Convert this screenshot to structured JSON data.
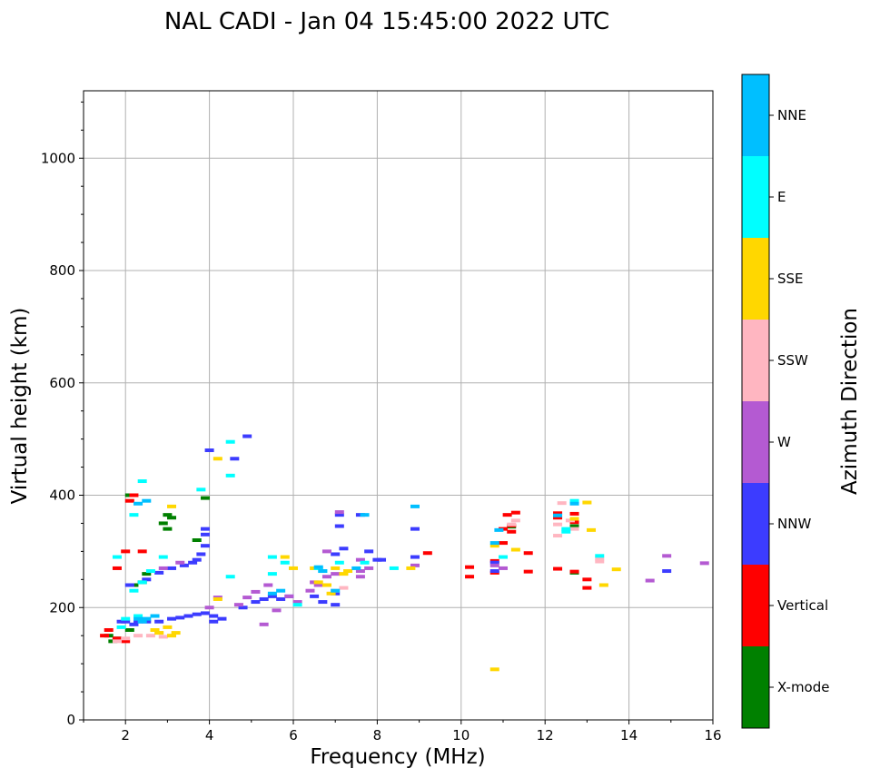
{
  "chart_data": {
    "type": "scatter",
    "title": "NAL CADI - Jan 04 15:45:00 2022 UTC",
    "xlabel": "Frequency (MHz)",
    "ylabel": "Virtual height (km)",
    "xlim": [
      1,
      16
    ],
    "ylim": [
      0,
      1120
    ],
    "xticks": [
      2,
      4,
      6,
      8,
      10,
      12,
      14,
      16
    ],
    "yticks": [
      0,
      200,
      400,
      600,
      800,
      1000
    ],
    "grid": true,
    "colorbar": {
      "label": "Azimuth Direction",
      "categories": [
        "X-mode",
        "Vertical",
        "NNW",
        "W",
        "SSW",
        "SSE",
        "E",
        "NNE"
      ],
      "colors": [
        "#008000",
        "#ff0000",
        "#3c3cff",
        "#b45ad2",
        "#ffb6c1",
        "#ffd700",
        "#00ffff",
        "#00bfff"
      ]
    },
    "series": [
      {
        "name": "X-mode",
        "points": [
          [
            1.6,
            150
          ],
          [
            1.7,
            140
          ],
          [
            1.8,
            145
          ],
          [
            2.1,
            160
          ],
          [
            2.2,
            240
          ],
          [
            2.4,
            245
          ],
          [
            2.5,
            260
          ],
          [
            3.0,
            340
          ],
          [
            2.9,
            350
          ],
          [
            3.1,
            360
          ],
          [
            3.0,
            365
          ],
          [
            3.9,
            395
          ],
          [
            3.7,
            320
          ],
          [
            2.1,
            400
          ],
          [
            12.7,
            262
          ],
          [
            11.2,
            344
          ],
          [
            12.7,
            345
          ]
        ]
      },
      {
        "name": "Vertical",
        "points": [
          [
            1.5,
            150
          ],
          [
            1.6,
            160
          ],
          [
            1.8,
            145
          ],
          [
            2.0,
            140
          ],
          [
            1.8,
            270
          ],
          [
            2.0,
            300
          ],
          [
            2.1,
            390
          ],
          [
            2.2,
            400
          ],
          [
            2.4,
            300
          ],
          [
            11.0,
            340
          ],
          [
            11.1,
            365
          ],
          [
            11.3,
            369
          ],
          [
            11.2,
            346
          ],
          [
            11.2,
            335
          ],
          [
            11.0,
            315
          ],
          [
            11.6,
            297
          ],
          [
            9.2,
            297
          ],
          [
            10.2,
            272
          ],
          [
            10.2,
            255
          ],
          [
            10.8,
            262
          ],
          [
            10.8,
            283
          ],
          [
            11.6,
            264
          ],
          [
            12.3,
            368
          ],
          [
            12.3,
            360
          ],
          [
            12.7,
            367
          ],
          [
            12.7,
            352
          ],
          [
            12.3,
            269
          ],
          [
            12.7,
            264
          ],
          [
            13.0,
            250
          ],
          [
            13.0,
            235
          ]
        ]
      },
      {
        "name": "NNW",
        "points": [
          [
            2.0,
            175
          ],
          [
            2.3,
            175
          ],
          [
            2.5,
            175
          ],
          [
            2.8,
            175
          ],
          [
            3.1,
            180
          ],
          [
            3.3,
            182
          ],
          [
            3.5,
            185
          ],
          [
            3.7,
            188
          ],
          [
            3.9,
            190
          ],
          [
            4.1,
            185
          ],
          [
            4.1,
            175
          ],
          [
            4.3,
            180
          ],
          [
            4.8,
            200
          ],
          [
            5.1,
            210
          ],
          [
            5.3,
            215
          ],
          [
            5.5,
            220
          ],
          [
            5.7,
            215
          ],
          [
            5.9,
            220
          ],
          [
            6.5,
            220
          ],
          [
            6.7,
            210
          ],
          [
            7.0,
            205
          ],
          [
            7.0,
            225
          ],
          [
            2.1,
            240
          ],
          [
            2.5,
            250
          ],
          [
            2.8,
            262
          ],
          [
            3.1,
            270
          ],
          [
            3.4,
            275
          ],
          [
            3.6,
            280
          ],
          [
            3.7,
            285
          ],
          [
            3.8,
            295
          ],
          [
            3.9,
            310
          ],
          [
            3.9,
            330
          ],
          [
            3.9,
            340
          ],
          [
            4.0,
            480
          ],
          [
            4.6,
            465
          ],
          [
            4.9,
            505
          ],
          [
            7.1,
            345
          ],
          [
            7.1,
            365
          ],
          [
            7.6,
            365
          ],
          [
            7.8,
            300
          ],
          [
            7.0,
            295
          ],
          [
            7.2,
            305
          ],
          [
            8.0,
            285
          ],
          [
            8.1,
            285
          ],
          [
            8.9,
            340
          ],
          [
            8.9,
            290
          ],
          [
            10.8,
            280
          ],
          [
            10.8,
            265
          ],
          [
            14.9,
            265
          ],
          [
            2.2,
            170
          ],
          [
            1.9,
            175
          ]
        ]
      },
      {
        "name": "W",
        "points": [
          [
            4.0,
            200
          ],
          [
            4.2,
            218
          ],
          [
            4.7,
            205
          ],
          [
            4.9,
            218
          ],
          [
            5.1,
            228
          ],
          [
            5.4,
            240
          ],
          [
            5.9,
            220
          ],
          [
            6.1,
            210
          ],
          [
            6.4,
            230
          ],
          [
            6.6,
            240
          ],
          [
            6.8,
            255
          ],
          [
            6.8,
            300
          ],
          [
            7.0,
            260
          ],
          [
            7.1,
            370
          ],
          [
            7.6,
            285
          ],
          [
            7.6,
            265
          ],
          [
            7.8,
            270
          ],
          [
            7.6,
            255
          ],
          [
            5.3,
            170
          ],
          [
            5.6,
            195
          ],
          [
            6.5,
            245
          ],
          [
            8.9,
            275
          ],
          [
            10.8,
            275
          ],
          [
            11.0,
            270
          ],
          [
            14.5,
            248
          ],
          [
            14.9,
            292
          ],
          [
            15.8,
            279
          ],
          [
            3.3,
            280
          ],
          [
            2.9,
            270
          ]
        ]
      },
      {
        "name": "SSW",
        "points": [
          [
            1.8,
            140
          ],
          [
            2.0,
            145
          ],
          [
            2.3,
            150
          ],
          [
            2.6,
            150
          ],
          [
            2.8,
            155
          ],
          [
            2.9,
            148
          ],
          [
            7.0,
            230
          ],
          [
            7.2,
            235
          ],
          [
            12.4,
            386
          ],
          [
            12.3,
            348
          ],
          [
            12.3,
            328
          ],
          [
            12.7,
            340
          ],
          [
            13.3,
            287
          ],
          [
            13.3,
            282
          ],
          [
            12.6,
            355
          ],
          [
            11.3,
            355
          ],
          [
            11.2,
            348
          ]
        ]
      },
      {
        "name": "SSE",
        "points": [
          [
            2.7,
            160
          ],
          [
            3.0,
            165
          ],
          [
            3.1,
            150
          ],
          [
            3.2,
            155
          ],
          [
            2.8,
            155
          ],
          [
            4.2,
            215
          ],
          [
            6.5,
            270
          ],
          [
            6.6,
            245
          ],
          [
            6.8,
            240
          ],
          [
            7.0,
            270
          ],
          [
            7.2,
            260
          ],
          [
            7.3,
            265
          ],
          [
            6.9,
            225
          ],
          [
            10.8,
            90
          ],
          [
            10.8,
            310
          ],
          [
            11.3,
            303
          ],
          [
            12.7,
            358
          ],
          [
            13.1,
            338
          ],
          [
            13.0,
            387
          ],
          [
            13.4,
            240
          ],
          [
            13.7,
            268
          ],
          [
            8.8,
            270
          ],
          [
            3.1,
            380
          ],
          [
            4.2,
            465
          ],
          [
            6.0,
            270
          ],
          [
            5.8,
            290
          ]
        ]
      },
      {
        "name": "E",
        "points": [
          [
            1.9,
            165
          ],
          [
            2.0,
            180
          ],
          [
            2.2,
            230
          ],
          [
            2.4,
            245
          ],
          [
            2.6,
            265
          ],
          [
            2.9,
            290
          ],
          [
            4.5,
            495
          ],
          [
            4.5,
            435
          ],
          [
            4.5,
            255
          ],
          [
            5.5,
            290
          ],
          [
            5.5,
            260
          ],
          [
            5.8,
            280
          ],
          [
            6.1,
            205
          ],
          [
            6.6,
            270
          ],
          [
            6.7,
            265
          ],
          [
            7.1,
            280
          ],
          [
            7.7,
            280
          ],
          [
            8.4,
            270
          ],
          [
            11.0,
            290
          ],
          [
            12.7,
            390
          ],
          [
            12.5,
            340
          ],
          [
            12.5,
            335
          ],
          [
            13.3,
            292
          ],
          [
            2.4,
            425
          ],
          [
            2.2,
            365
          ],
          [
            3.8,
            410
          ],
          [
            1.8,
            290
          ],
          [
            2.3,
            185
          ]
        ]
      },
      {
        "name": "NNE",
        "points": [
          [
            2.3,
            180
          ],
          [
            2.5,
            180
          ],
          [
            2.7,
            185
          ],
          [
            2.4,
            175
          ],
          [
            5.5,
            225
          ],
          [
            5.7,
            230
          ],
          [
            6.6,
            272
          ],
          [
            6.7,
            265
          ],
          [
            7.0,
            230
          ],
          [
            7.5,
            270
          ],
          [
            7.7,
            365
          ],
          [
            8.9,
            380
          ],
          [
            10.9,
            338
          ],
          [
            10.8,
            315
          ],
          [
            12.3,
            364
          ],
          [
            12.7,
            385
          ],
          [
            2.5,
            390
          ],
          [
            2.3,
            385
          ]
        ]
      }
    ]
  }
}
